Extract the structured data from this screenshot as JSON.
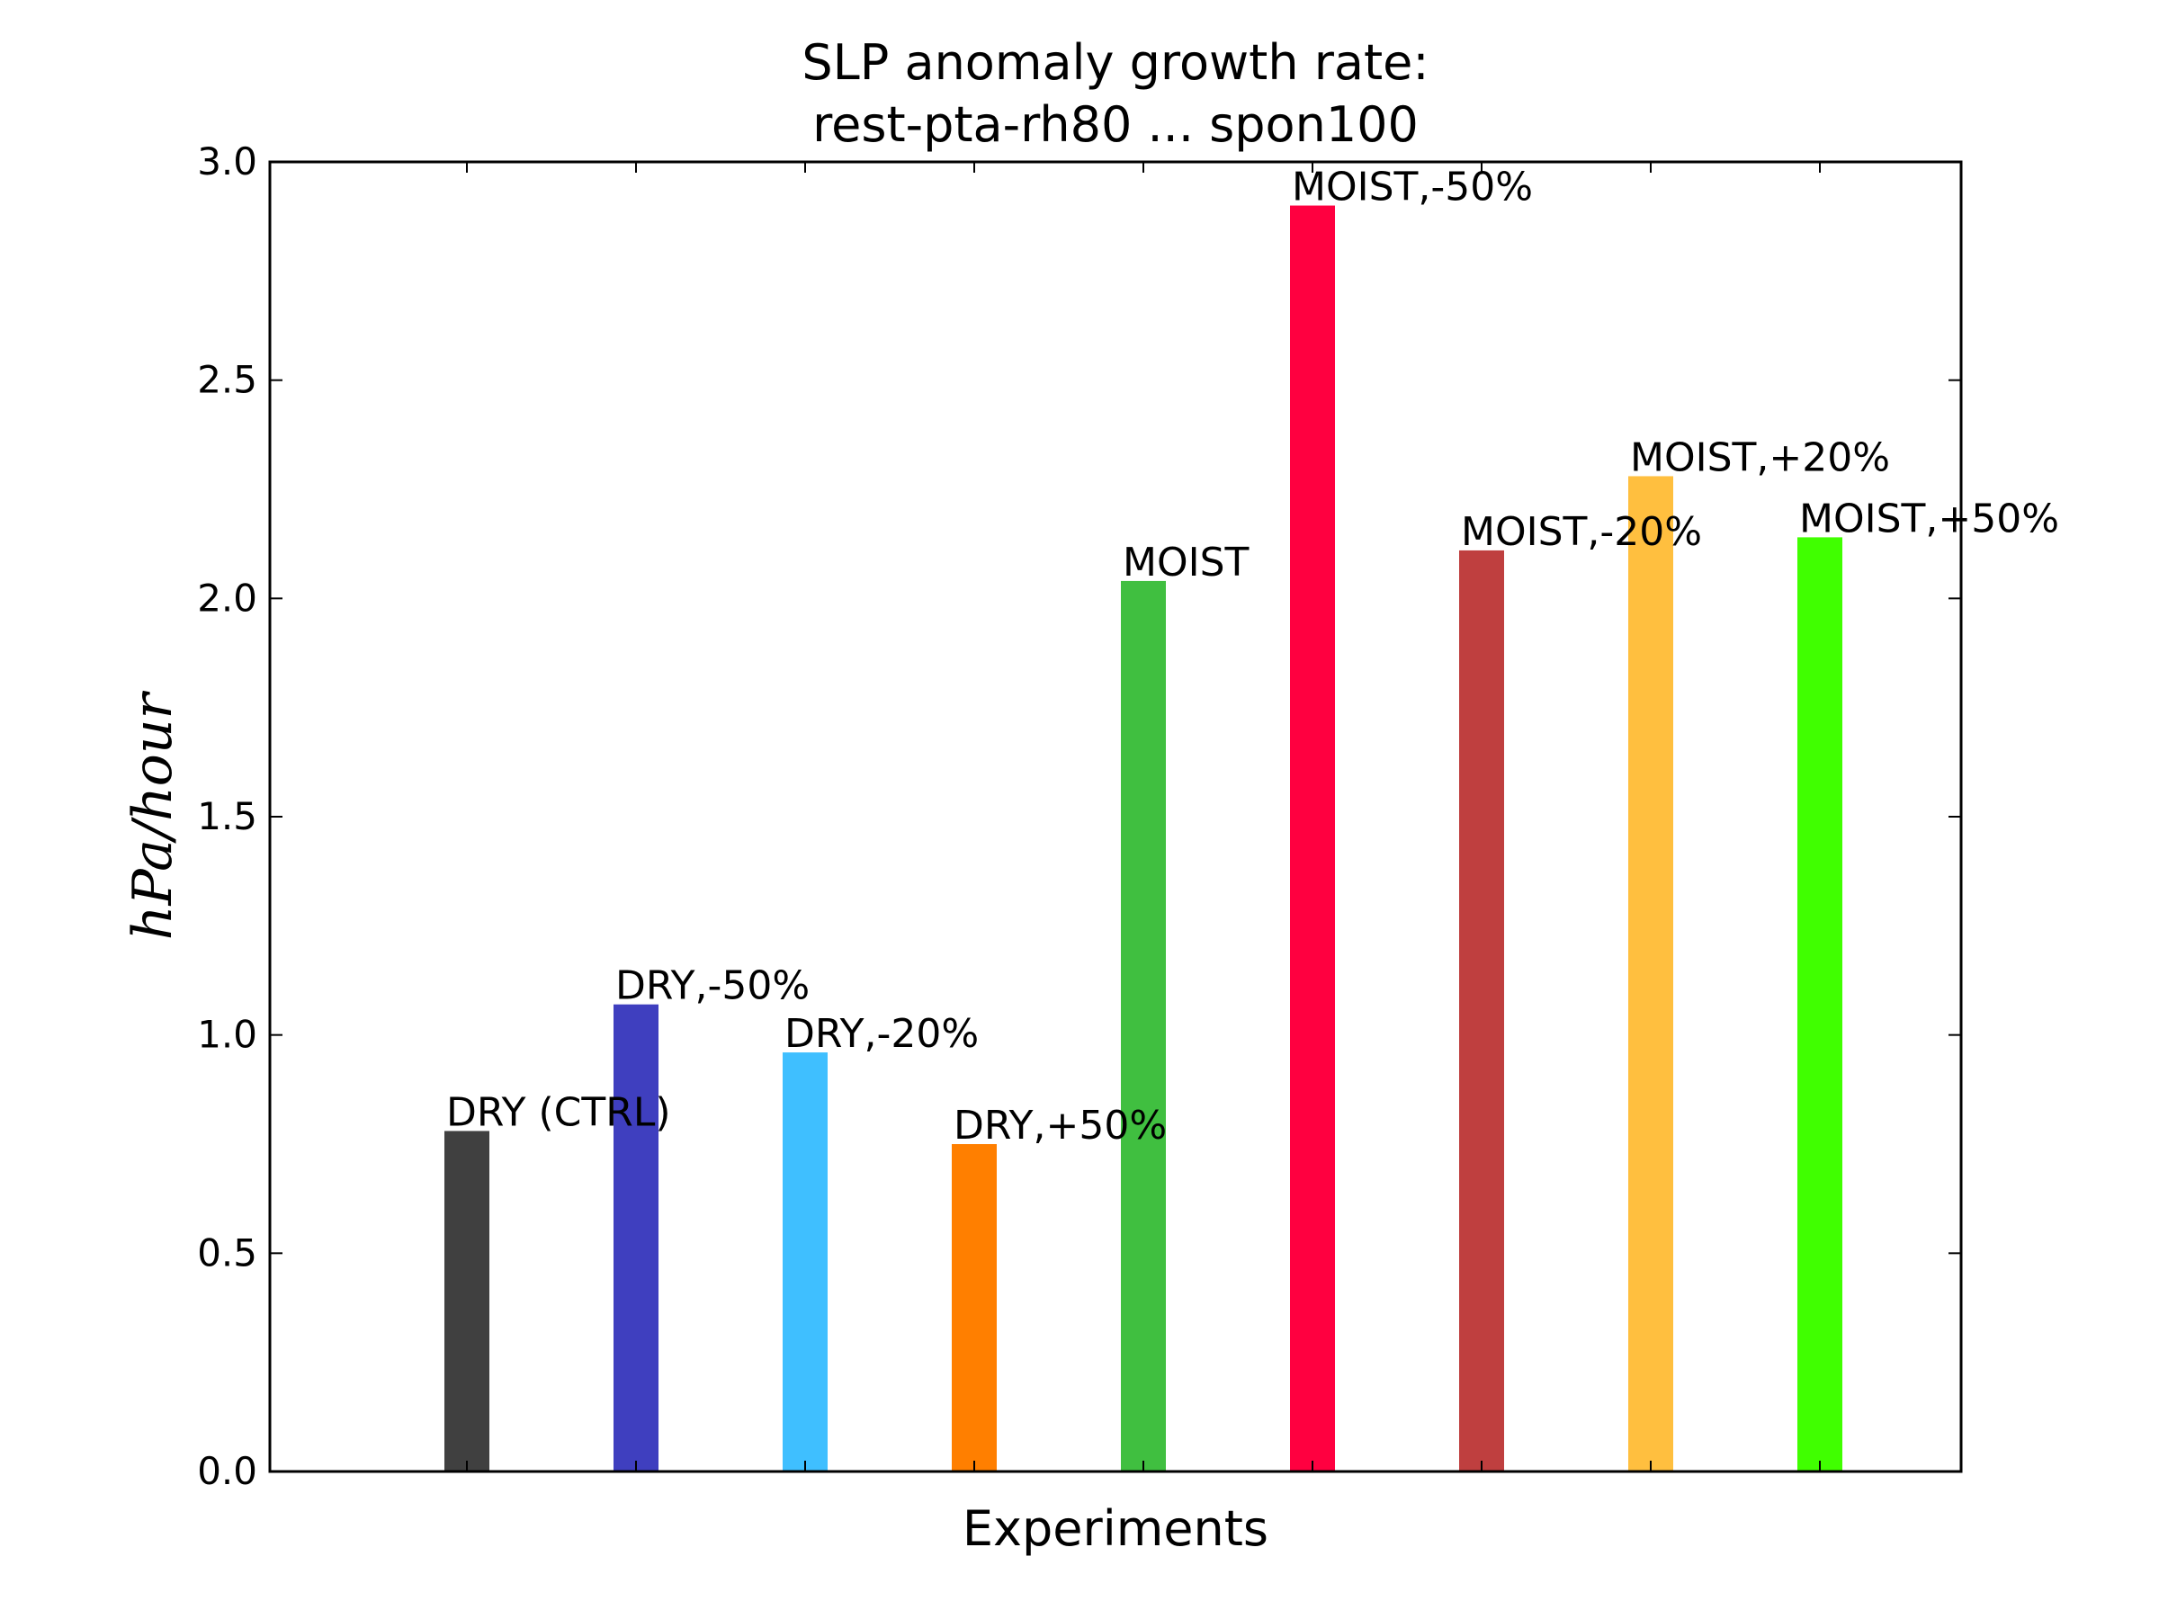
{
  "chart_data": {
    "type": "bar",
    "title": "SLP anomaly growth rate:",
    "subtitle": "rest-pta-rh80 ... spon100",
    "xlabel": "Experiments",
    "ylabel": "hPa/hour",
    "ylim": [
      0,
      3.0
    ],
    "yticks": [
      "0.0",
      "0.5",
      "1.0",
      "1.5",
      "2.0",
      "2.5",
      "3.0"
    ],
    "grid": false,
    "categories": [
      "DRY (CTRL)",
      "DRY,-50%",
      "DRY,-20%",
      "DRY,+50%",
      "MOIST",
      "MOIST,-50%",
      "MOIST,-20%",
      "MOIST,+20%",
      "MOIST,+50%"
    ],
    "values": [
      0.78,
      1.07,
      0.96,
      0.75,
      2.04,
      2.9,
      2.11,
      2.28,
      2.14
    ],
    "colors": [
      "#404040",
      "#3f3fbf",
      "#3fbfff",
      "#ff7f00",
      "#40bf40",
      "#ff0040",
      "#bf3f3f",
      "#ffbf3f",
      "#40ff00"
    ]
  }
}
